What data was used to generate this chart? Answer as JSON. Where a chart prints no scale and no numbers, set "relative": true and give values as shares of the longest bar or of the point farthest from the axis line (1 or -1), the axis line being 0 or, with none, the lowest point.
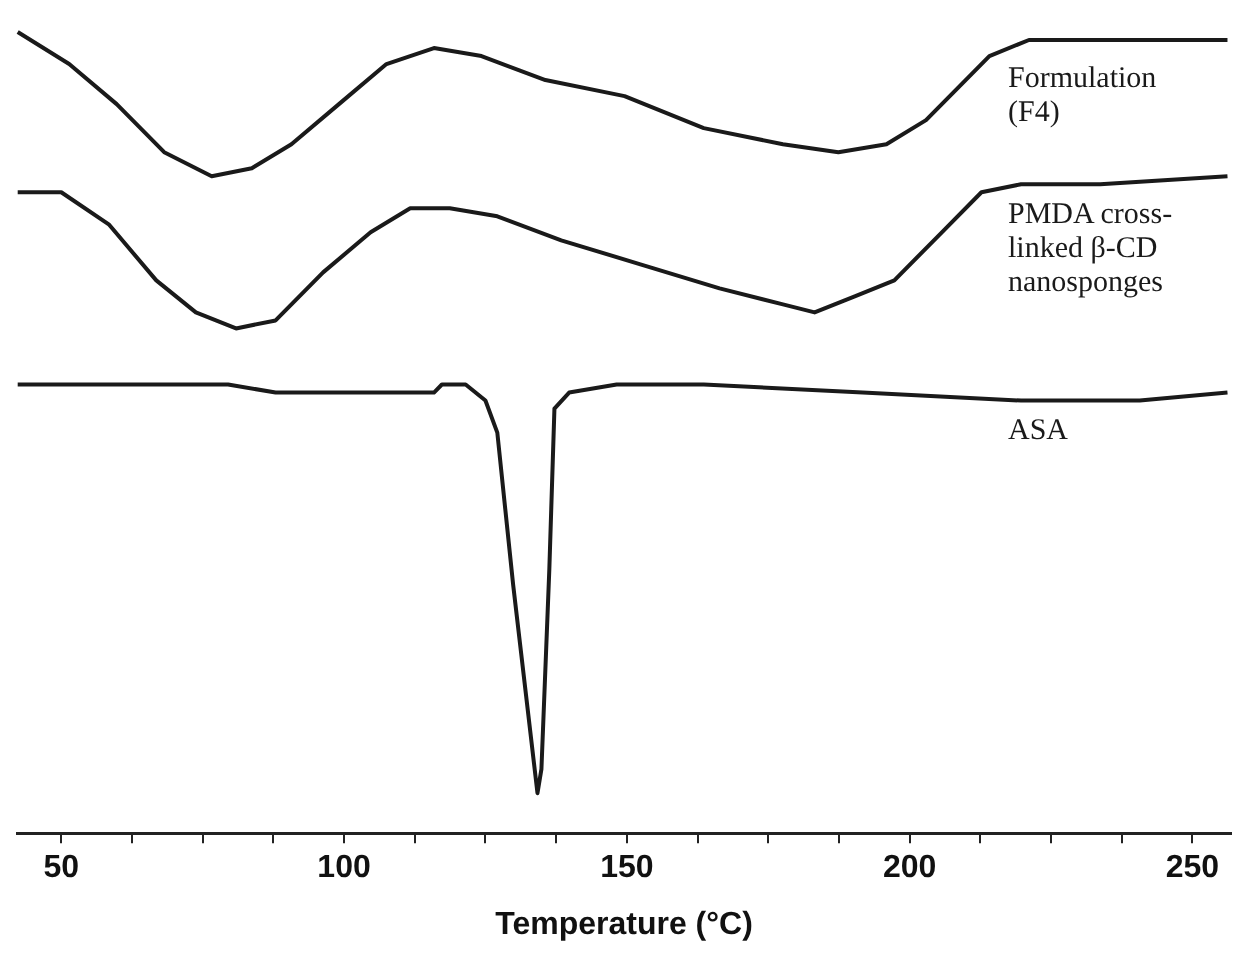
{
  "chart_data": {
    "type": "line",
    "xlabel": "Temperature (°C)",
    "relative": true,
    "legend": false,
    "grid": false,
    "marker": "none",
    "line_style": "solid",
    "tick_labels": "x",
    "xlim": [
      42,
      257
    ],
    "xticks": [
      50,
      {
        "value": 62.5,
        "label": null
      },
      {
        "value": 75,
        "label": null
      },
      {
        "value": 87.5,
        "label": null
      },
      100,
      {
        "value": 112.5,
        "label": null
      },
      {
        "value": 125,
        "label": null
      },
      {
        "value": 137.5,
        "label": null
      },
      150,
      {
        "value": 162.5,
        "label": null
      },
      {
        "value": 175,
        "label": null
      },
      {
        "value": 187.5,
        "label": null
      },
      200,
      {
        "value": 212.5,
        "label": null
      },
      {
        "value": 225,
        "label": null
      },
      {
        "value": 237.5,
        "label": null
      },
      250
    ],
    "series": [
      {
        "name": "Formulation (F4)",
        "color": "#1a1a1a",
        "x": [
          42.3,
          51.4,
          59.8,
          68.2,
          76.6,
          83.7,
          90.7,
          99.1,
          107.5,
          115.9,
          124.3,
          135.6,
          149.6,
          163.6,
          177.6,
          187.4,
          195.9,
          202.9,
          208.5,
          214.1,
          221.1,
          233.7,
          256.2
        ],
        "values": [
          1.0,
          0.96,
          0.91,
          0.85,
          0.82,
          0.83,
          0.86,
          0.91,
          0.96,
          0.98,
          0.97,
          0.94,
          0.92,
          0.88,
          0.86,
          0.85,
          0.86,
          0.89,
          0.93,
          0.97,
          0.99,
          0.99,
          0.99
        ]
      },
      {
        "name": "PMDA cross-linked β-CD nanosponges",
        "color": "#1a1a1a",
        "x": [
          42.3,
          50,
          58.4,
          66.8,
          73.8,
          80.9,
          87.9,
          96.3,
          104.7,
          111.7,
          118.7,
          127.1,
          138.4,
          152.4,
          166.4,
          177.6,
          183.2,
          190.3,
          197.3,
          205.7,
          212.7,
          219.7,
          233.7,
          256.2
        ],
        "values": [
          0.8,
          0.8,
          0.76,
          0.69,
          0.65,
          0.63,
          0.64,
          0.7,
          0.75,
          0.78,
          0.78,
          0.77,
          0.74,
          0.71,
          0.68,
          0.66,
          0.65,
          0.67,
          0.69,
          0.75,
          0.8,
          0.81,
          0.81,
          0.82
        ]
      },
      {
        "name": "ASA",
        "color": "#1a1a1a",
        "x": [
          42.3,
          79.5,
          87.9,
          115.9,
          117.3,
          121.5,
          125.0,
          127.1,
          129.9,
          134.2,
          134.9,
          136.3,
          137.2,
          139.8,
          148.2,
          163.6,
          191.7,
          219.7,
          233.7,
          240.7,
          256.2
        ],
        "values": [
          0.56,
          0.56,
          0.55,
          0.55,
          0.56,
          0.56,
          0.54,
          0.5,
          0.31,
          0.05,
          0.08,
          0.33,
          0.53,
          0.55,
          0.56,
          0.56,
          0.55,
          0.54,
          0.54,
          0.54,
          0.55
        ]
      }
    ]
  }
}
